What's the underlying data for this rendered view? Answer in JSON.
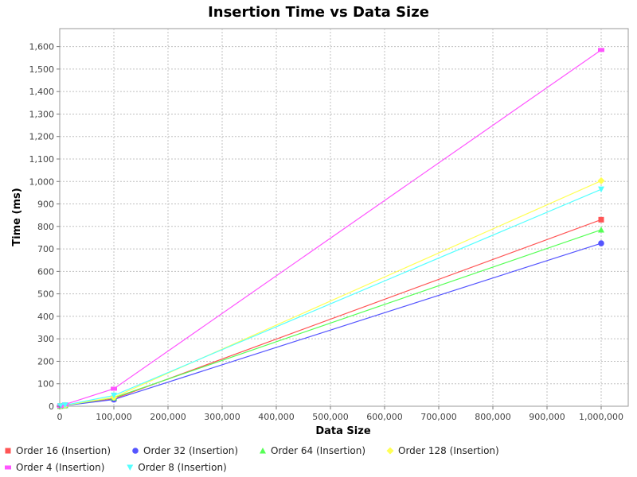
{
  "chart_data": {
    "type": "line",
    "title": "Insertion Time vs Data Size",
    "xlabel": "Data Size",
    "ylabel": "Time (ms)",
    "xlim": [
      0,
      1050000
    ],
    "ylim": [
      0,
      1680
    ],
    "x_ticks": [
      0,
      100000,
      200000,
      300000,
      400000,
      500000,
      600000,
      700000,
      800000,
      900000,
      1000000
    ],
    "x_tick_labels": [
      "0",
      "100,000",
      "200,000",
      "300,000",
      "400,000",
      "500,000",
      "600,000",
      "700,000",
      "800,000",
      "900,000",
      "1,000,000"
    ],
    "y_ticks": [
      0,
      100,
      200,
      300,
      400,
      500,
      600,
      700,
      800,
      900,
      1000,
      1100,
      1200,
      1300,
      1400,
      1500,
      1600
    ],
    "y_tick_labels": [
      "0",
      "100",
      "200",
      "300",
      "400",
      "500",
      "600",
      "700",
      "800",
      "900",
      "1,000",
      "1,100",
      "1,200",
      "1,300",
      "1,400",
      "1,500",
      "1,600"
    ],
    "grid": true,
    "legend_position": "bottom",
    "x": [
      1000,
      10000,
      100000,
      1000000
    ],
    "series": [
      {
        "name": "Order 16 (Insertion)",
        "color": "#ff5555",
        "marker": "square",
        "values": [
          1,
          4,
          33,
          830
        ]
      },
      {
        "name": "Order 32 (Insertion)",
        "color": "#5555ff",
        "marker": "circle",
        "values": [
          1,
          3,
          30,
          725
        ]
      },
      {
        "name": "Order 64 (Insertion)",
        "color": "#55ff55",
        "marker": "triangle-up",
        "values": [
          1,
          4,
          38,
          785
        ]
      },
      {
        "name": "Order 128 (Insertion)",
        "color": "#ffff55",
        "marker": "diamond",
        "values": [
          1,
          4,
          40,
          1003
        ]
      },
      {
        "name": "Order 4 (Insertion)",
        "color": "#ff55ff",
        "marker": "rect-wide",
        "values": [
          1,
          8,
          78,
          1585
        ]
      },
      {
        "name": "Order 8 (Insertion)",
        "color": "#55ffff",
        "marker": "triangle-down",
        "values": [
          1,
          5,
          48,
          965
        ]
      }
    ]
  }
}
